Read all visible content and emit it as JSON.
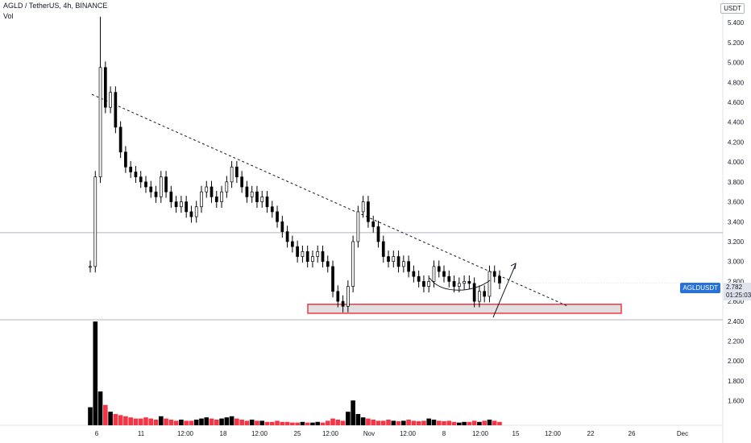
{
  "header": {
    "title": "AGLD / TetherUS, 4h, BINANCE",
    "volume_label": "Vol"
  },
  "axis": {
    "currency": "USDT",
    "symbol_badge": "AGLDUSDT",
    "last_price": "2.782",
    "countdown": "01:25:03"
  },
  "colors": {
    "candle": "#000000",
    "vol_down": "#f23645",
    "vol_up": "#000000",
    "support_zone_fill": "#e0e0e0",
    "support_zone_border": "#f23645",
    "guide_line": "#b2b5be",
    "badge": "#2a72d7"
  },
  "chart_data": {
    "type": "candlestick",
    "ylim": [
      1.5,
      5.45
    ],
    "y_ticks": [
      "5.400",
      "5.200",
      "5.000",
      "4.800",
      "4.600",
      "4.400",
      "4.200",
      "4.000",
      "3.800",
      "3.600",
      "3.400",
      "3.200",
      "3.000",
      "2.800",
      "2.600",
      "2.400",
      "2.200",
      "2.000",
      "1.800",
      "1.600"
    ],
    "x_ticks": [
      "6",
      "11",
      "12:00",
      "18",
      "12:00",
      "25",
      "12:00",
      "Nov",
      "12:00",
      "8",
      "12:00",
      "15",
      "12:00",
      "22",
      "26",
      "Dec"
    ],
    "horizontal_line": 3.29,
    "support_zone": [
      2.48,
      2.57
    ],
    "trendline": {
      "from": {
        "x": "6",
        "y": 4.68
      },
      "to": {
        "x": "22",
        "y": 2.55
      }
    },
    "close_path": [
      2.95,
      3.85,
      4.95,
      4.55,
      4.7,
      4.35,
      4.1,
      3.95,
      3.9,
      3.85,
      3.8,
      3.75,
      3.7,
      3.65,
      3.85,
      3.7,
      3.6,
      3.55,
      3.6,
      3.5,
      3.45,
      3.55,
      3.7,
      3.75,
      3.65,
      3.6,
      3.7,
      3.8,
      3.95,
      3.85,
      3.75,
      3.65,
      3.7,
      3.6,
      3.65,
      3.55,
      3.5,
      3.4,
      3.3,
      3.2,
      3.15,
      3.05,
      3.1,
      3.0,
      3.05,
      3.1,
      3.0,
      2.95,
      2.7,
      2.6,
      2.55,
      2.75,
      3.2,
      3.5,
      3.6,
      3.4,
      3.35,
      3.2,
      3.05,
      3.0,
      3.05,
      2.95,
      3.0,
      2.9,
      2.85,
      2.8,
      2.75,
      2.8,
      2.95,
      2.9,
      2.85,
      2.8,
      2.75,
      2.78,
      2.8,
      2.78,
      2.6,
      2.7,
      2.65,
      2.9,
      2.85,
      2.782
    ],
    "volume_path": [
      0.8,
      4.6,
      1.5,
      0.9,
      0.6,
      0.5,
      0.45,
      0.4,
      0.35,
      0.3,
      0.3,
      0.35,
      0.3,
      0.25,
      0.4,
      0.3,
      0.25,
      0.2,
      0.25,
      0.2,
      0.2,
      0.25,
      0.3,
      0.35,
      0.3,
      0.25,
      0.3,
      0.35,
      0.4,
      0.3,
      0.25,
      0.2,
      0.25,
      0.2,
      0.2,
      0.15,
      0.15,
      0.2,
      0.15,
      0.15,
      0.12,
      0.12,
      0.15,
      0.12,
      0.12,
      0.15,
      0.12,
      0.2,
      0.3,
      0.25,
      0.2,
      0.6,
      1.1,
      0.5,
      0.35,
      0.3,
      0.25,
      0.2,
      0.2,
      0.25,
      0.2,
      0.18,
      0.2,
      0.25,
      0.2,
      0.18,
      0.2,
      0.3,
      0.25,
      0.2,
      0.18,
      0.2,
      0.15,
      0.12,
      0.15,
      0.15,
      0.2,
      0.15,
      0.2,
      0.25,
      0.2,
      0.15
    ]
  }
}
